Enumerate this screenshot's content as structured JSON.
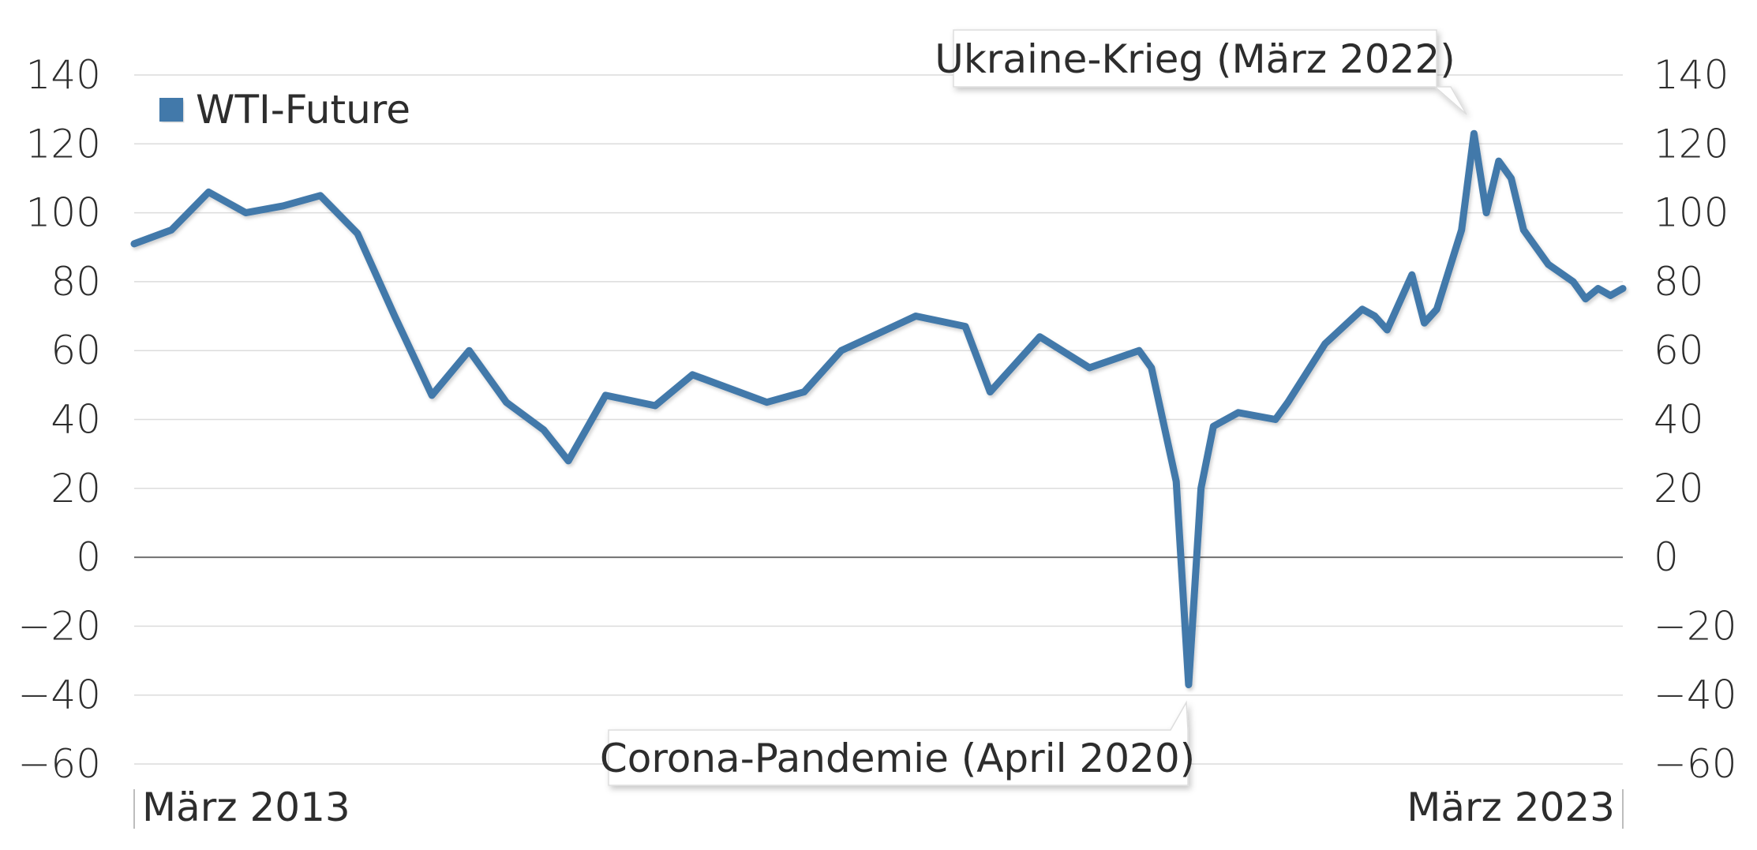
{
  "chart_data": {
    "type": "line",
    "title": "",
    "xlabel": "",
    "ylabel": "",
    "ylim": [
      -60,
      140
    ],
    "yticks": [
      -60,
      -40,
      -20,
      0,
      20,
      40,
      60,
      80,
      100,
      120,
      140
    ],
    "ytick_labels": [
      "−60",
      "−40",
      "−20",
      "0",
      "20",
      "40",
      "60",
      "80",
      "100",
      "120",
      "140"
    ],
    "secondary_y_axis": true,
    "xlim": [
      "2013-03",
      "2023-03"
    ],
    "x_tick_labels": [
      {
        "date": "2013-03",
        "label": "März 2013"
      },
      {
        "date": "2023-03",
        "label": "März 2023"
      }
    ],
    "grid": true,
    "legend_position": "top-left",
    "series": [
      {
        "name": "WTI-Future",
        "color": "#4379aa",
        "x": [
          "2013-03",
          "2013-06",
          "2013-09",
          "2013-12",
          "2014-03",
          "2014-06",
          "2014-09",
          "2014-12",
          "2015-03",
          "2015-06",
          "2015-09",
          "2015-12",
          "2016-02",
          "2016-05",
          "2016-09",
          "2016-12",
          "2017-06",
          "2017-09",
          "2017-12",
          "2018-03",
          "2018-06",
          "2018-10",
          "2018-12",
          "2019-04",
          "2019-08",
          "2019-12",
          "2020-01",
          "2020-03",
          "2020-04",
          "2020-05",
          "2020-06",
          "2020-08",
          "2020-11",
          "2020-12",
          "2021-03",
          "2021-06",
          "2021-07",
          "2021-08",
          "2021-10",
          "2021-11",
          "2021-12",
          "2022-02",
          "2022-03",
          "2022-04",
          "2022-05",
          "2022-06",
          "2022-07",
          "2022-09",
          "2022-11",
          "2022-12",
          "2023-01",
          "2023-02",
          "2023-03"
        ],
        "values": [
          91,
          95,
          106,
          100,
          102,
          105,
          94,
          70,
          47,
          60,
          45,
          37,
          28,
          47,
          44,
          53,
          45,
          48,
          60,
          65,
          70,
          67,
          48,
          64,
          55,
          60,
          55,
          22,
          -37,
          20,
          38,
          42,
          40,
          45,
          62,
          72,
          70,
          66,
          82,
          68,
          72,
          95,
          123,
          100,
          115,
          110,
          95,
          85,
          80,
          75,
          78,
          76,
          78
        ]
      }
    ],
    "annotations": [
      {
        "label": "Ukraine-Krieg (März 2022)",
        "date": "2022-03",
        "value": 123
      },
      {
        "label": "Corona-Pandemie (April 2020)",
        "date": "2020-04",
        "value": -37
      }
    ]
  }
}
